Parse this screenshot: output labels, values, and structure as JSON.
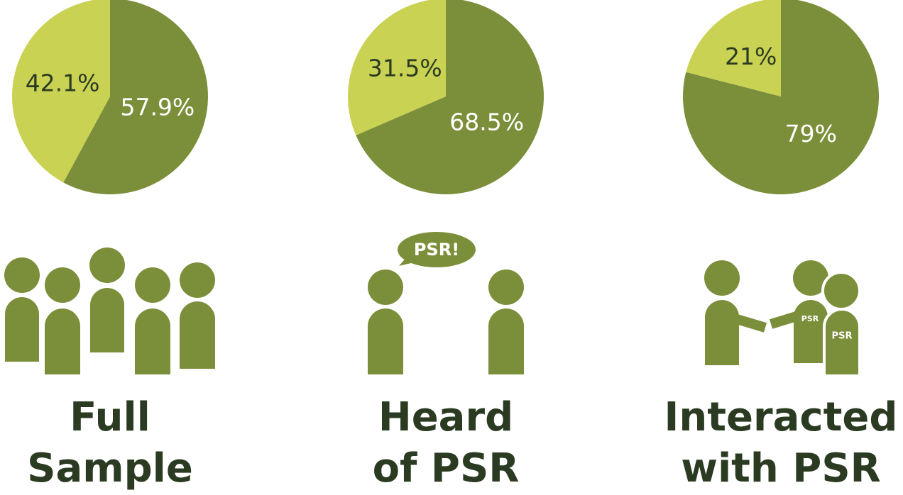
{
  "chart_data": [
    {
      "type": "pie",
      "title": "Full Sample",
      "values": [
        57.9,
        42.1
      ],
      "value_labels": [
        "57.9%",
        "42.1%"
      ],
      "colors": [
        "#7b8f3a",
        "#c9d253"
      ]
    },
    {
      "type": "pie",
      "title": "Heard of PSR",
      "values": [
        68.5,
        31.5
      ],
      "value_labels": [
        "68.5%",
        "31.5%"
      ],
      "colors": [
        "#7b8f3a",
        "#c9d253"
      ],
      "annotations": [
        "PSR!"
      ]
    },
    {
      "type": "pie",
      "title": "Interacted with PSR",
      "values": [
        79,
        21
      ],
      "value_labels": [
        "79%",
        "21%"
      ],
      "colors": [
        "#7b8f3a",
        "#c9d253"
      ],
      "annotations": [
        "PSR",
        "PSR"
      ]
    }
  ]
}
